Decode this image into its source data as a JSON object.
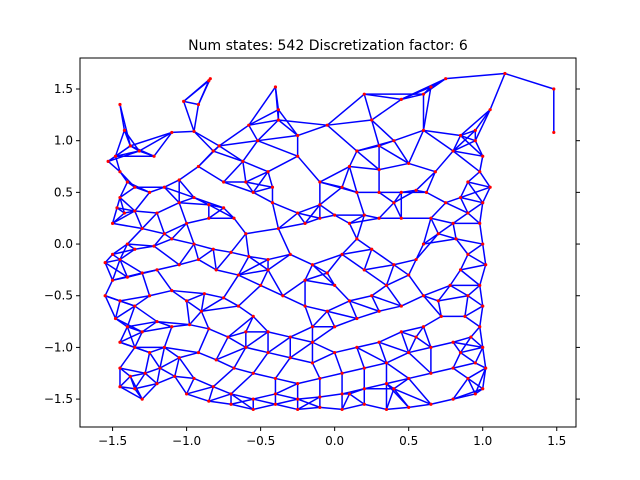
{
  "chart_data": {
    "type": "scatter",
    "title": "Num states: 542 Discretization factor: 6",
    "xlabel": "",
    "ylabel": "",
    "xlim": [
      -1.72,
      1.63
    ],
    "ylim": [
      -1.77,
      1.8
    ],
    "xticks": [
      -1.5,
      -1.0,
      -0.5,
      0.0,
      0.5,
      1.0,
      1.5
    ],
    "yticks": [
      -1.5,
      -1.0,
      -0.5,
      0.0,
      0.5,
      1.0,
      1.5
    ],
    "xtick_labels": [
      "−1.5",
      "−1.0",
      "−0.5",
      "0.0",
      "0.5",
      "1.0",
      "1.5"
    ],
    "ytick_labels": [
      "−1.5",
      "−1.0",
      "−0.5",
      "0.0",
      "0.5",
      "1.0",
      "1.5"
    ],
    "grid": false,
    "colors": {
      "edges": "#0000ff",
      "nodes": "#ff0000",
      "axes": "#000000"
    },
    "nodes": [
      [
        -0.84,
        1.6
      ],
      [
        -0.85,
        1.58
      ],
      [
        -1.02,
        1.38
      ],
      [
        -0.92,
        1.35
      ],
      [
        -1.1,
        1.08
      ],
      [
        -0.95,
        1.09
      ],
      [
        -0.78,
        0.95
      ],
      [
        -0.82,
        0.9
      ],
      [
        -0.58,
        1.15
      ],
      [
        -0.38,
        1.2
      ],
      [
        -0.52,
        1.0
      ],
      [
        -0.62,
        0.8
      ],
      [
        -0.45,
        0.7
      ],
      [
        -0.4,
        1.52
      ],
      [
        -0.38,
        1.3
      ],
      [
        -0.42,
        0.55
      ],
      [
        -1.45,
        1.35
      ],
      [
        -1.42,
        1.1
      ],
      [
        -1.38,
        0.95
      ],
      [
        -1.32,
        0.9
      ],
      [
        -1.22,
        0.85
      ],
      [
        -1.53,
        0.8
      ],
      [
        -1.48,
        0.85
      ],
      [
        -1.45,
        0.7
      ],
      [
        -1.4,
        0.6
      ],
      [
        -1.35,
        0.55
      ],
      [
        -1.25,
        0.5
      ],
      [
        -1.15,
        0.55
      ],
      [
        -1.05,
        0.62
      ],
      [
        -0.92,
        0.75
      ],
      [
        -1.45,
        0.45
      ],
      [
        -1.47,
        0.35
      ],
      [
        -1.5,
        0.2
      ],
      [
        -1.42,
        0.3
      ],
      [
        -1.35,
        0.32
      ],
      [
        -1.2,
        0.3
      ],
      [
        -1.05,
        0.4
      ],
      [
        -0.95,
        0.45
      ],
      [
        -0.85,
        0.38
      ],
      [
        -0.75,
        0.35
      ],
      [
        -0.68,
        0.25
      ],
      [
        -0.55,
        0.5
      ],
      [
        -0.42,
        0.4
      ],
      [
        -0.25,
        0.3
      ],
      [
        -0.1,
        0.6
      ],
      [
        -0.1,
        0.38
      ],
      [
        0.05,
        0.55
      ],
      [
        0.15,
        0.5
      ],
      [
        0.3,
        0.5
      ],
      [
        0.3,
        0.72
      ],
      [
        0.45,
        0.5
      ],
      [
        0.55,
        0.52
      ],
      [
        -0.2,
        0.2
      ],
      [
        -0.1,
        0.25
      ],
      [
        0.0,
        0.28
      ],
      [
        0.1,
        0.2
      ],
      [
        0.2,
        0.28
      ],
      [
        0.3,
        0.25
      ],
      [
        0.45,
        0.25
      ],
      [
        -0.38,
        0.15
      ],
      [
        -0.6,
        0.1
      ],
      [
        -0.85,
        0.25
      ],
      [
        -1.0,
        0.2
      ],
      [
        -1.3,
        0.15
      ],
      [
        -1.4,
        0.0
      ],
      [
        -1.5,
        -0.1
      ],
      [
        -1.55,
        -0.18
      ],
      [
        -1.45,
        -0.15
      ],
      [
        -1.35,
        -0.05
      ],
      [
        -1.22,
        -0.02
      ],
      [
        -1.1,
        0.05
      ],
      [
        -0.95,
        0.0
      ],
      [
        -0.82,
        -0.05
      ],
      [
        -0.7,
        -0.08
      ],
      [
        -0.58,
        -0.12
      ],
      [
        -0.45,
        -0.15
      ],
      [
        -0.3,
        -0.1
      ],
      [
        -0.15,
        -0.2
      ],
      [
        -0.05,
        -0.28
      ],
      [
        0.05,
        -0.1
      ],
      [
        -1.5,
        -0.35
      ],
      [
        -1.4,
        -0.32
      ],
      [
        -1.3,
        -0.28
      ],
      [
        -1.2,
        -0.25
      ],
      [
        -1.05,
        -0.2
      ],
      [
        -0.92,
        -0.15
      ],
      [
        -0.8,
        -0.25
      ],
      [
        -0.65,
        -0.3
      ],
      [
        -0.5,
        -0.4
      ],
      [
        -0.35,
        -0.5
      ],
      [
        -0.2,
        -0.6
      ],
      [
        -0.05,
        -0.65
      ],
      [
        0.1,
        -0.55
      ],
      [
        0.25,
        -0.5
      ],
      [
        0.35,
        -0.4
      ],
      [
        0.4,
        -0.2
      ],
      [
        0.55,
        -0.15
      ],
      [
        0.5,
        -0.3
      ],
      [
        -1.55,
        -0.5
      ],
      [
        -1.45,
        -0.55
      ],
      [
        -1.35,
        -0.6
      ],
      [
        -1.25,
        -0.5
      ],
      [
        -1.1,
        -0.45
      ],
      [
        -1.0,
        -0.55
      ],
      [
        -0.88,
        -0.48
      ],
      [
        -0.75,
        -0.52
      ],
      [
        -0.65,
        -0.6
      ],
      [
        -0.55,
        -0.7
      ],
      [
        -0.45,
        -0.85
      ],
      [
        -0.3,
        -0.9
      ],
      [
        -0.15,
        -0.95
      ],
      [
        0.0,
        -0.8
      ],
      [
        0.15,
        -0.72
      ],
      [
        0.3,
        -0.65
      ],
      [
        0.45,
        -0.6
      ],
      [
        0.6,
        -0.5
      ],
      [
        -1.48,
        -0.72
      ],
      [
        -1.4,
        -0.8
      ],
      [
        -1.3,
        -0.85
      ],
      [
        -1.2,
        -0.75
      ],
      [
        -1.1,
        -0.8
      ],
      [
        -0.98,
        -0.78
      ],
      [
        -0.85,
        -0.82
      ],
      [
        -0.72,
        -0.9
      ],
      [
        -0.6,
        -1.0
      ],
      [
        -0.45,
        -1.05
      ],
      [
        -0.3,
        -1.1
      ],
      [
        -0.15,
        -1.15
      ],
      [
        0.0,
        -1.05
      ],
      [
        0.15,
        -1.0
      ],
      [
        0.3,
        -0.95
      ],
      [
        0.45,
        -0.85
      ],
      [
        0.6,
        -0.8
      ],
      [
        0.72,
        -0.7
      ],
      [
        -1.45,
        -0.95
      ],
      [
        -1.35,
        -1.0
      ],
      [
        -1.25,
        -1.05
      ],
      [
        -1.15,
        -1.0
      ],
      [
        -1.05,
        -1.1
      ],
      [
        -0.92,
        -1.05
      ],
      [
        -0.8,
        -1.12
      ],
      [
        -0.68,
        -1.2
      ],
      [
        -0.55,
        -1.25
      ],
      [
        -0.4,
        -1.3
      ],
      [
        -0.25,
        -1.35
      ],
      [
        -0.1,
        -1.3
      ],
      [
        0.05,
        -1.25
      ],
      [
        0.2,
        -1.2
      ],
      [
        0.35,
        -1.15
      ],
      [
        0.5,
        -1.05
      ],
      [
        0.65,
        -1.0
      ],
      [
        0.8,
        -0.95
      ],
      [
        -1.45,
        -1.2
      ],
      [
        -1.38,
        -1.28
      ],
      [
        -1.28,
        -1.25
      ],
      [
        -1.18,
        -1.2
      ],
      [
        -1.08,
        -1.28
      ],
      [
        -0.95,
        -1.3
      ],
      [
        -0.82,
        -1.38
      ],
      [
        -0.7,
        -1.45
      ],
      [
        -0.55,
        -1.5
      ],
      [
        -0.4,
        -1.45
      ],
      [
        -0.25,
        -1.5
      ],
      [
        -0.1,
        -1.48
      ],
      [
        0.05,
        -1.45
      ],
      [
        0.2,
        -1.4
      ],
      [
        0.35,
        -1.35
      ],
      [
        0.5,
        -1.3
      ],
      [
        0.65,
        -1.25
      ],
      [
        0.8,
        -1.2
      ],
      [
        0.95,
        -1.15
      ],
      [
        -1.45,
        -1.38
      ],
      [
        -1.35,
        -1.4
      ],
      [
        -1.2,
        -1.35
      ],
      [
        -1.0,
        -1.45
      ],
      [
        -0.85,
        -1.52
      ],
      [
        -0.7,
        -1.55
      ],
      [
        -0.55,
        -1.6
      ],
      [
        -0.4,
        -1.55
      ],
      [
        -0.25,
        -1.6
      ],
      [
        -0.1,
        -1.58
      ],
      [
        0.05,
        -1.6
      ],
      [
        0.2,
        -1.55
      ],
      [
        0.35,
        -1.6
      ],
      [
        0.5,
        -1.58
      ],
      [
        0.65,
        -1.55
      ],
      [
        0.8,
        -1.5
      ],
      [
        0.95,
        -1.45
      ],
      [
        1.0,
        -1.4
      ],
      [
        1.02,
        -1.2
      ],
      [
        1.0,
        -1.0
      ],
      [
        0.98,
        -0.8
      ],
      [
        1.0,
        -0.6
      ],
      [
        0.98,
        -0.4
      ],
      [
        1.02,
        -0.2
      ],
      [
        1.0,
        0.0
      ],
      [
        0.98,
        0.2
      ],
      [
        1.0,
        0.4
      ],
      [
        1.05,
        0.55
      ],
      [
        0.98,
        0.7
      ],
      [
        1.0,
        0.85
      ],
      [
        0.95,
        1.0
      ],
      [
        0.9,
        0.6
      ],
      [
        0.85,
        0.45
      ],
      [
        0.9,
        0.3
      ],
      [
        0.8,
        0.2
      ],
      [
        0.7,
        0.1
      ],
      [
        0.65,
        0.25
      ],
      [
        0.62,
        0.5
      ],
      [
        0.68,
        0.7
      ],
      [
        0.75,
        0.4
      ],
      [
        0.82,
        0.05
      ],
      [
        0.9,
        -0.1
      ],
      [
        0.85,
        -0.25
      ],
      [
        0.78,
        -0.4
      ],
      [
        0.7,
        -0.55
      ],
      [
        0.9,
        -0.5
      ],
      [
        0.88,
        -0.7
      ],
      [
        0.92,
        -0.9
      ],
      [
        0.85,
        -1.05
      ],
      [
        0.9,
        -1.3
      ],
      [
        0.2,
        1.45
      ],
      [
        0.25,
        1.2
      ],
      [
        0.4,
        1.0
      ],
      [
        0.6,
        1.1
      ],
      [
        0.6,
        1.45
      ],
      [
        0.65,
        1.52
      ],
      [
        0.85,
        1.05
      ],
      [
        1.15,
        1.65
      ],
      [
        1.05,
        1.3
      ],
      [
        1.48,
        1.5
      ],
      [
        1.48,
        1.08
      ],
      [
        0.95,
        1.1
      ],
      [
        0.75,
        1.6
      ],
      [
        0.45,
        1.4
      ],
      [
        0.3,
        0.95
      ],
      [
        0.15,
        0.9
      ],
      [
        -0.05,
        1.15
      ],
      [
        -0.25,
        0.85
      ],
      [
        0.4,
        0.4
      ],
      [
        0.15,
        0.05
      ],
      [
        0.2,
        -0.25
      ],
      [
        -0.2,
        -0.35
      ],
      [
        0.0,
        -0.4
      ],
      [
        -0.45,
        -0.25
      ],
      [
        0.6,
        0.0
      ],
      [
        0.25,
        -0.05
      ],
      [
        -1.15,
        0.1
      ],
      [
        -0.75,
        0.6
      ],
      [
        -0.6,
        0.6
      ],
      [
        -0.25,
        1.05
      ],
      [
        0.1,
        0.75
      ],
      [
        0.5,
        0.78
      ],
      [
        0.8,
        0.9
      ],
      [
        0.55,
        -0.9
      ],
      [
        0.4,
        -1.4
      ],
      [
        -0.15,
        -0.8
      ],
      [
        -0.9,
        -0.65
      ],
      [
        -1.3,
        -1.5
      ],
      [
        -0.6,
        -0.85
      ],
      [
        0.1,
        -1.45
      ]
    ],
    "edges": "k-nearest-neighbour graph (k=4) linking the nodes above"
  },
  "plot": {
    "title": "Num states: 542 Discretization factor: 6"
  }
}
